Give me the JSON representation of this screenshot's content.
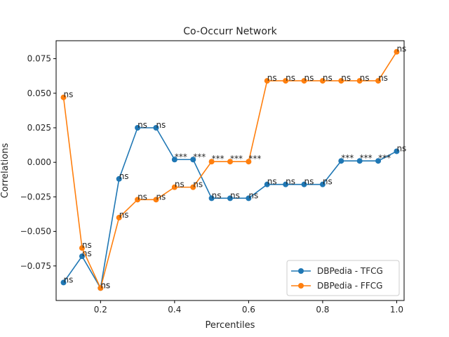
{
  "chart_data": {
    "type": "line",
    "title": "Co-Occurr Network",
    "xlabel": "Percentiles",
    "ylabel": "Correlations",
    "xlim": [
      0.08,
      1.02
    ],
    "ylim": [
      -0.1,
      0.088
    ],
    "xticks": [
      0.2,
      0.4,
      0.6,
      0.8,
      1.0
    ],
    "xtick_labels": [
      "0.2",
      "0.4",
      "0.6",
      "0.8",
      "1.0"
    ],
    "yticks": [
      -0.075,
      -0.05,
      -0.025,
      0.0,
      0.025,
      0.05,
      0.075
    ],
    "ytick_labels": [
      "−0.075",
      "−0.050",
      "−0.025",
      "0.000",
      "0.025",
      "0.050",
      "0.075"
    ],
    "grid": false,
    "legend_position": "lower-right",
    "x": [
      0.1,
      0.15,
      0.2,
      0.25,
      0.3,
      0.35,
      0.4,
      0.45,
      0.5,
      0.55,
      0.6,
      0.65,
      0.7,
      0.75,
      0.8,
      0.85,
      0.9,
      0.95,
      1.0
    ],
    "series": [
      {
        "name": "DBPedia - TFCG",
        "color": "#1f77b4",
        "values": [
          -0.087,
          -0.068,
          -0.091,
          -0.012,
          0.025,
          0.025,
          0.002,
          0.002,
          -0.026,
          -0.026,
          -0.026,
          -0.016,
          -0.016,
          -0.016,
          -0.016,
          0.001,
          0.001,
          0.001,
          0.008
        ],
        "annotations": [
          "ns",
          "ns",
          "ns",
          "ns",
          "ns",
          "ns",
          "***",
          "***",
          "ns",
          "ns",
          "ns",
          "ns",
          "ns",
          "ns",
          "ns",
          "***",
          "***",
          "***",
          "ns"
        ]
      },
      {
        "name": "DBPedia - FFCG",
        "color": "#ff7f0e",
        "values": [
          0.047,
          -0.062,
          -0.091,
          -0.04,
          -0.027,
          -0.027,
          -0.018,
          -0.018,
          0.0005,
          0.0005,
          0.0005,
          0.059,
          0.059,
          0.059,
          0.059,
          0.059,
          0.059,
          0.059,
          0.08
        ],
        "annotations": [
          "ns",
          "ns",
          "ns",
          "ns",
          "ns",
          "ns",
          "ns",
          "ns",
          "***",
          "***",
          "***",
          "ns",
          "ns",
          "ns",
          "ns",
          "ns",
          "ns",
          "ns",
          "ns"
        ]
      }
    ]
  }
}
